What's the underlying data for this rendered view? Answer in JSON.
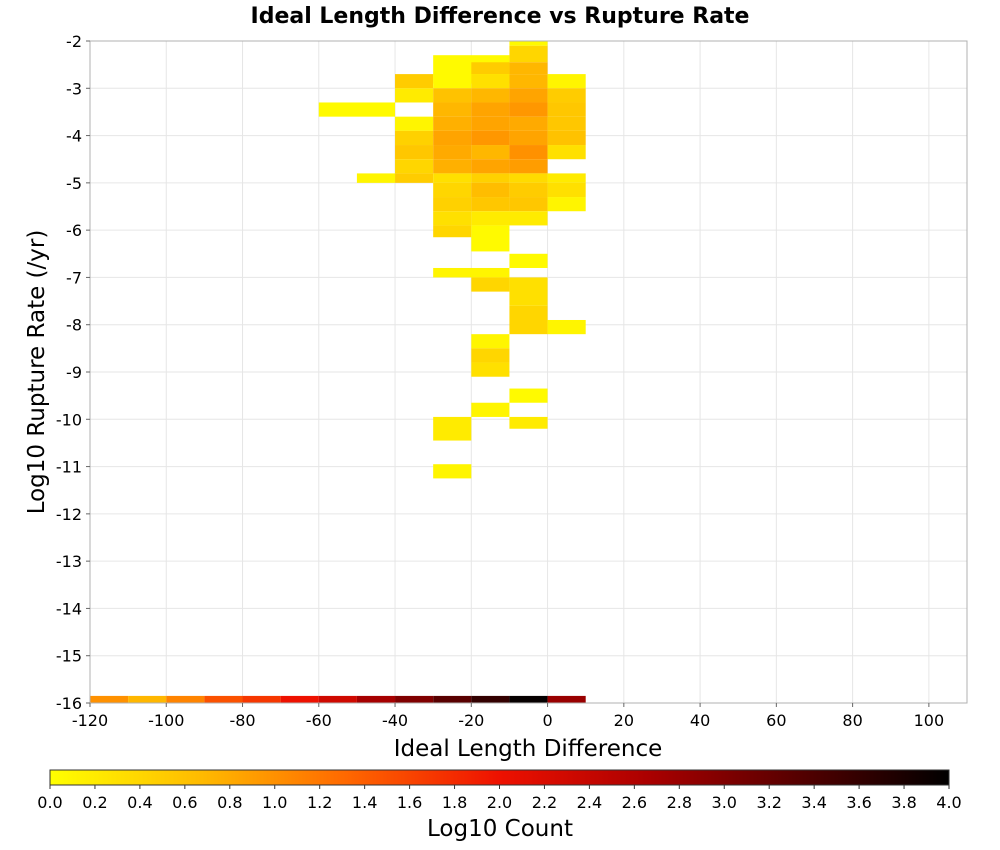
{
  "chart_data": {
    "type": "heatmap",
    "title": "Ideal Length Difference vs Rupture Rate",
    "xlabel": "Ideal Length Difference",
    "ylabel": "Log10 Rupture Rate (/yr)",
    "xlim": [
      -120,
      110
    ],
    "ylim": [
      -16,
      -2
    ],
    "xticks": [
      "-120",
      "-100",
      "-80",
      "-60",
      "-40",
      "-20",
      "0",
      "20",
      "40",
      "60",
      "80",
      "100"
    ],
    "yticks": [
      "-2",
      "-3",
      "-4",
      "-5",
      "-6",
      "-7",
      "-8",
      "-9",
      "-10",
      "-11",
      "-12",
      "-13",
      "-14",
      "-15",
      "-16"
    ],
    "grid": true,
    "bin_width": 10,
    "colorbar": {
      "label": "Log10 Count",
      "range": [
        0,
        4
      ],
      "placement": "bottom",
      "ticks": [
        "0.0",
        "0.2",
        "0.4",
        "0.6",
        "0.8",
        "1.0",
        "1.2",
        "1.4",
        "1.6",
        "1.8",
        "2.0",
        "2.2",
        "2.4",
        "2.6",
        "2.8",
        "3.0",
        "3.2",
        "3.4",
        "3.6",
        "3.8",
        "4.0"
      ],
      "colors": [
        "#ffff00",
        "#ffbb00",
        "#ff6600",
        "#ee1100",
        "#aa0000",
        "#550000",
        "#000000"
      ]
    },
    "cells": [
      {
        "x0": -30,
        "x1": -10,
        "y0": -2.3,
        "y1": -2.9,
        "v": 0.05
      },
      {
        "x0": -10,
        "x1": 0,
        "y0": -2.0,
        "y1": -2.1,
        "v": 0.05
      },
      {
        "x0": -10,
        "x1": 0,
        "y0": -2.1,
        "y1": -2.45,
        "v": 0.4
      },
      {
        "x0": -10,
        "x1": 0,
        "y0": -2.45,
        "y1": -2.7,
        "v": 0.7
      },
      {
        "x0": -20,
        "x1": -10,
        "y0": -2.45,
        "y1": -2.7,
        "v": 0.5
      },
      {
        "x0": -40,
        "x1": -30,
        "y0": -2.7,
        "y1": -3.0,
        "v": 0.5
      },
      {
        "x0": -30,
        "x1": -20,
        "y0": -2.7,
        "y1": -3.0,
        "v": 0.05
      },
      {
        "x0": -20,
        "x1": -10,
        "y0": -2.7,
        "y1": -3.0,
        "v": 0.3
      },
      {
        "x0": -10,
        "x1": 0,
        "y0": -2.7,
        "y1": -3.0,
        "v": 0.7
      },
      {
        "x0": 0,
        "x1": 10,
        "y0": -2.7,
        "y1": -3.0,
        "v": 0.1
      },
      {
        "x0": -40,
        "x1": -30,
        "y0": -3.0,
        "y1": -3.3,
        "v": 0.2
      },
      {
        "x0": -30,
        "x1": -20,
        "y0": -3.0,
        "y1": -3.3,
        "v": 0.6
      },
      {
        "x0": -20,
        "x1": -10,
        "y0": -3.0,
        "y1": -3.3,
        "v": 0.7
      },
      {
        "x0": -10,
        "x1": 0,
        "y0": -3.0,
        "y1": -3.3,
        "v": 0.85
      },
      {
        "x0": 0,
        "x1": 10,
        "y0": -3.0,
        "y1": -3.3,
        "v": 0.5
      },
      {
        "x0": -60,
        "x1": -40,
        "y0": -3.3,
        "y1": -3.6,
        "v": 0.05
      },
      {
        "x0": -30,
        "x1": -20,
        "y0": -3.3,
        "y1": -3.6,
        "v": 0.7
      },
      {
        "x0": -20,
        "x1": -10,
        "y0": -3.3,
        "y1": -3.6,
        "v": 0.85
      },
      {
        "x0": -10,
        "x1": 0,
        "y0": -3.3,
        "y1": -3.6,
        "v": 0.95
      },
      {
        "x0": 0,
        "x1": 10,
        "y0": -3.3,
        "y1": -3.6,
        "v": 0.55
      },
      {
        "x0": -40,
        "x1": -30,
        "y0": -3.6,
        "y1": -3.9,
        "v": 0.1
      },
      {
        "x0": -30,
        "x1": -20,
        "y0": -3.6,
        "y1": -3.9,
        "v": 0.75
      },
      {
        "x0": -20,
        "x1": -10,
        "y0": -3.6,
        "y1": -3.9,
        "v": 0.85
      },
      {
        "x0": -10,
        "x1": 0,
        "y0": -3.6,
        "y1": -3.9,
        "v": 0.8
      },
      {
        "x0": 0,
        "x1": 10,
        "y0": -3.6,
        "y1": -3.9,
        "v": 0.55
      },
      {
        "x0": -40,
        "x1": -30,
        "y0": -3.9,
        "y1": -4.2,
        "v": 0.45
      },
      {
        "x0": -30,
        "x1": -20,
        "y0": -3.9,
        "y1": -4.2,
        "v": 0.85
      },
      {
        "x0": -20,
        "x1": -10,
        "y0": -3.9,
        "y1": -4.2,
        "v": 0.95
      },
      {
        "x0": -10,
        "x1": 0,
        "y0": -3.9,
        "y1": -4.2,
        "v": 0.85
      },
      {
        "x0": 0,
        "x1": 10,
        "y0": -3.9,
        "y1": -4.2,
        "v": 0.6
      },
      {
        "x0": -40,
        "x1": -30,
        "y0": -4.2,
        "y1": -4.5,
        "v": 0.55
      },
      {
        "x0": -30,
        "x1": -20,
        "y0": -4.2,
        "y1": -4.5,
        "v": 0.8
      },
      {
        "x0": -20,
        "x1": -10,
        "y0": -4.2,
        "y1": -4.5,
        "v": 0.7
      },
      {
        "x0": -10,
        "x1": 0,
        "y0": -4.2,
        "y1": -4.5,
        "v": 1.0
      },
      {
        "x0": 0,
        "x1": 10,
        "y0": -4.2,
        "y1": -4.5,
        "v": 0.3
      },
      {
        "x0": -40,
        "x1": -30,
        "y0": -4.5,
        "y1": -4.8,
        "v": 0.4
      },
      {
        "x0": -30,
        "x1": -20,
        "y0": -4.5,
        "y1": -4.8,
        "v": 0.75
      },
      {
        "x0": -20,
        "x1": -10,
        "y0": -4.5,
        "y1": -4.8,
        "v": 0.85
      },
      {
        "x0": -10,
        "x1": 0,
        "y0": -4.5,
        "y1": -4.8,
        "v": 0.9
      },
      {
        "x0": -50,
        "x1": -40,
        "y0": -4.8,
        "y1": -5.0,
        "v": 0.1
      },
      {
        "x0": -40,
        "x1": -30,
        "y0": -4.8,
        "y1": -5.0,
        "v": 0.5
      },
      {
        "x0": -30,
        "x1": -20,
        "y0": -4.8,
        "y1": -5.0,
        "v": 0.3
      },
      {
        "x0": -20,
        "x1": -10,
        "y0": -4.8,
        "y1": -5.0,
        "v": 0.45
      },
      {
        "x0": -10,
        "x1": 0,
        "y0": -4.8,
        "y1": -5.0,
        "v": 0.35
      },
      {
        "x0": 0,
        "x1": 10,
        "y0": -4.8,
        "y1": -5.0,
        "v": 0.2
      },
      {
        "x0": -30,
        "x1": -20,
        "y0": -5.0,
        "y1": -5.3,
        "v": 0.4
      },
      {
        "x0": -20,
        "x1": -10,
        "y0": -5.0,
        "y1": -5.3,
        "v": 0.65
      },
      {
        "x0": -10,
        "x1": 0,
        "y0": -5.0,
        "y1": -5.3,
        "v": 0.5
      },
      {
        "x0": 0,
        "x1": 10,
        "y0": -5.0,
        "y1": -5.3,
        "v": 0.3
      },
      {
        "x0": -30,
        "x1": -20,
        "y0": -5.3,
        "y1": -5.6,
        "v": 0.45
      },
      {
        "x0": -20,
        "x1": -10,
        "y0": -5.3,
        "y1": -5.6,
        "v": 0.55
      },
      {
        "x0": -10,
        "x1": 0,
        "y0": -5.3,
        "y1": -5.6,
        "v": 0.55
      },
      {
        "x0": 0,
        "x1": 10,
        "y0": -5.3,
        "y1": -5.6,
        "v": 0.1
      },
      {
        "x0": -30,
        "x1": -20,
        "y0": -5.6,
        "y1": -5.9,
        "v": 0.3
      },
      {
        "x0": -20,
        "x1": 0,
        "y0": -5.6,
        "y1": -5.9,
        "v": 0.2
      },
      {
        "x0": -30,
        "x1": -20,
        "y0": -5.9,
        "y1": -6.15,
        "v": 0.4
      },
      {
        "x0": -20,
        "x1": -10,
        "y0": -5.9,
        "y1": -6.45,
        "v": 0.05
      },
      {
        "x0": -10,
        "x1": 0,
        "y0": -6.5,
        "y1": -6.8,
        "v": 0.05
      },
      {
        "x0": -30,
        "x1": -10,
        "y0": -6.8,
        "y1": -7.0,
        "v": 0.1
      },
      {
        "x0": -20,
        "x1": -10,
        "y0": -7.0,
        "y1": -7.3,
        "v": 0.4
      },
      {
        "x0": -10,
        "x1": 0,
        "y0": -7.0,
        "y1": -7.6,
        "v": 0.3
      },
      {
        "x0": -10,
        "x1": 0,
        "y0": -7.6,
        "y1": -8.2,
        "v": 0.4
      },
      {
        "x0": 0,
        "x1": 10,
        "y0": -7.9,
        "y1": -8.2,
        "v": 0.1
      },
      {
        "x0": -20,
        "x1": -10,
        "y0": -8.2,
        "y1": -8.5,
        "v": 0.1
      },
      {
        "x0": -20,
        "x1": -10,
        "y0": -8.5,
        "y1": -8.8,
        "v": 0.4
      },
      {
        "x0": -20,
        "x1": -10,
        "y0": -8.8,
        "y1": -9.1,
        "v": 0.3
      },
      {
        "x0": -10,
        "x1": 0,
        "y0": -9.35,
        "y1": -9.65,
        "v": 0.05
      },
      {
        "x0": -20,
        "x1": -10,
        "y0": -9.65,
        "y1": -9.95,
        "v": 0.1
      },
      {
        "x0": -10,
        "x1": 0,
        "y0": -9.95,
        "y1": -10.2,
        "v": 0.2
      },
      {
        "x0": -30,
        "x1": -20,
        "y0": -9.95,
        "y1": -10.45,
        "v": 0.2
      },
      {
        "x0": -30,
        "x1": -20,
        "y0": -10.95,
        "y1": -11.25,
        "v": 0.1
      },
      {
        "x0": -120,
        "x1": -110,
        "y0": -15.85,
        "y1": -16.0,
        "v": 1.0
      },
      {
        "x0": -110,
        "x1": -100,
        "y0": -15.85,
        "y1": -16.0,
        "v": 0.7
      },
      {
        "x0": -100,
        "x1": -90,
        "y0": -15.85,
        "y1": -16.0,
        "v": 1.1
      },
      {
        "x0": -90,
        "x1": -80,
        "y0": -15.85,
        "y1": -16.0,
        "v": 1.5
      },
      {
        "x0": -80,
        "x1": -70,
        "y0": -15.85,
        "y1": -16.0,
        "v": 1.7
      },
      {
        "x0": -70,
        "x1": -60,
        "y0": -15.85,
        "y1": -16.0,
        "v": 2.0
      },
      {
        "x0": -60,
        "x1": -50,
        "y0": -15.85,
        "y1": -16.0,
        "v": 2.3
      },
      {
        "x0": -50,
        "x1": -40,
        "y0": -15.85,
        "y1": -16.0,
        "v": 2.7
      },
      {
        "x0": -40,
        "x1": -30,
        "y0": -15.85,
        "y1": -16.0,
        "v": 3.0
      },
      {
        "x0": -30,
        "x1": -20,
        "y0": -15.85,
        "y1": -16.0,
        "v": 3.3
      },
      {
        "x0": -20,
        "x1": -10,
        "y0": -15.85,
        "y1": -16.0,
        "v": 3.6
      },
      {
        "x0": -10,
        "x1": 0,
        "y0": -15.85,
        "y1": -16.0,
        "v": 3.95
      },
      {
        "x0": 0,
        "x1": 10,
        "y0": -15.85,
        "y1": -16.0,
        "v": 2.8
      }
    ]
  }
}
